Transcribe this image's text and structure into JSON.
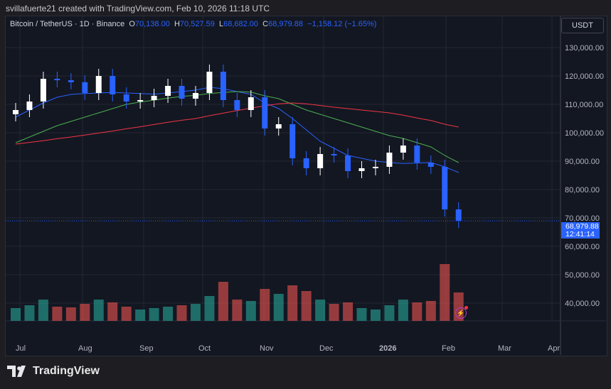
{
  "credit": "svillafuerte21 created with TradingView.com, Feb 10, 2026 11:18 UTC",
  "legend": {
    "symbol": "Bitcoin / TetherUS · 1D · Binance",
    "o_label": "O",
    "open": "70,138.00",
    "h_label": "H",
    "high": "70,527.59",
    "l_label": "L",
    "low": "68,682.00",
    "c_label": "C",
    "close": "68,979.88",
    "change": "−1,158.12 (−1.65%)"
  },
  "currency": "USDT",
  "last_price": {
    "price": "68,979.88",
    "countdown": "12:41:14"
  },
  "brand": "TradingView",
  "colors": {
    "up": "#ffffff",
    "down": "#2962ff",
    "ma_fast": "#2962ff",
    "ma_mid": "#4caf50",
    "ma_slow": "#f23645",
    "vol_up": "#26a69a",
    "vol_down": "#ef5350",
    "background": "#131722"
  },
  "chart_data": {
    "type": "candlestick",
    "ylim": [
      30000,
      140000
    ],
    "y_ticks": [
      "130,000.00",
      "120,000.00",
      "110,000.00",
      "100,000.00",
      "90,000.00",
      "80,000.00",
      "70,000.00",
      "60,000.00",
      "50,000.00",
      "40,000.00"
    ],
    "x_ticks": [
      "Jul",
      "Aug",
      "Sep",
      "Oct",
      "Nov",
      "Dec",
      "2026",
      "Feb",
      "Mar",
      "Apr"
    ],
    "dates": [
      "2025-07-01",
      "2025-07-08",
      "2025-07-15",
      "2025-07-22",
      "2025-07-29",
      "2025-08-05",
      "2025-08-12",
      "2025-08-19",
      "2025-08-26",
      "2025-09-02",
      "2025-09-09",
      "2025-09-16",
      "2025-09-23",
      "2025-09-30",
      "2025-10-07",
      "2025-10-14",
      "2025-10-21",
      "2025-10-28",
      "2025-11-04",
      "2025-11-11",
      "2025-11-18",
      "2025-11-25",
      "2025-12-02",
      "2025-12-09",
      "2025-12-16",
      "2025-12-23",
      "2025-12-30",
      "2026-01-06",
      "2026-01-13",
      "2026-01-20",
      "2026-01-27",
      "2026-02-03",
      "2026-02-10"
    ],
    "close": [
      108000,
      111000,
      119000,
      118500,
      117800,
      114000,
      120000,
      113500,
      111000,
      111500,
      113000,
      116500,
      112000,
      114000,
      121500,
      111500,
      108000,
      112500,
      101500,
      103000,
      91000,
      87500,
      92500,
      92000,
      86500,
      87500,
      88000,
      93000,
      95500,
      89500,
      88000,
      73000,
      68980
    ],
    "ma_fast": [
      105500,
      108000,
      110500,
      112500,
      113500,
      113800,
      114000,
      114200,
      114000,
      113800,
      113600,
      114000,
      114500,
      115000,
      116000,
      115500,
      114500,
      113500,
      110500,
      108500,
      105000,
      101000,
      97000,
      94500,
      92000,
      91000,
      90000,
      89500,
      89200,
      89300,
      89500,
      88000,
      86000
    ],
    "ma_mid": [
      96500,
      98500,
      100500,
      102500,
      104000,
      105500,
      107000,
      108500,
      110000,
      110800,
      111500,
      112200,
      112800,
      113200,
      113800,
      114200,
      114500,
      114300,
      113000,
      112000,
      110000,
      108000,
      106500,
      105000,
      103500,
      102000,
      100500,
      99000,
      98000,
      96500,
      95000,
      92000,
      89500
    ],
    "ma_slow": [
      96000,
      96600,
      97200,
      97900,
      98500,
      99200,
      99900,
      100600,
      101400,
      102100,
      102900,
      103700,
      104400,
      105000,
      106000,
      106900,
      107800,
      108700,
      109500,
      110200,
      110500,
      110200,
      109600,
      109000,
      108500,
      108000,
      107500,
      107000,
      106200,
      105200,
      104300,
      103000,
      102000
    ],
    "volume": [
      18,
      22,
      30,
      20,
      19,
      24,
      30,
      26,
      20,
      16,
      18,
      20,
      22,
      24,
      35,
      55,
      30,
      28,
      45,
      38,
      50,
      42,
      30,
      24,
      26,
      18,
      16,
      22,
      30,
      26,
      28,
      80,
      40
    ]
  }
}
